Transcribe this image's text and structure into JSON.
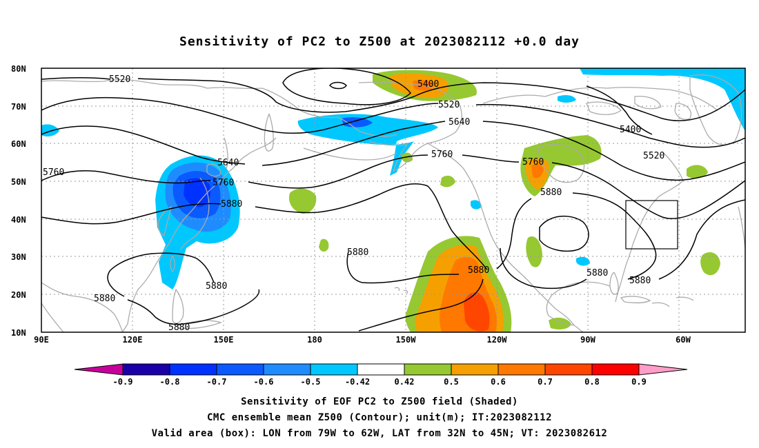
{
  "title": "Sensitivity of PC2 to Z500 at 2023082112 +0.0 day",
  "map": {
    "lon_ticks": [
      "90E",
      "120E",
      "150E",
      "180",
      "150W",
      "120W",
      "90W",
      "60W"
    ],
    "lat_ticks": [
      "80N",
      "70N",
      "60N",
      "50N",
      "40N",
      "30N",
      "20N",
      "10N"
    ],
    "lon_range": [
      90,
      322
    ],
    "lat_range": [
      10,
      80
    ],
    "colors": {
      "land_outline": "#aaaaaa",
      "grid": "#999999",
      "contour": "#000000",
      "box": "#000000"
    }
  },
  "contour_labels": {
    "c1": "5520",
    "c2": "5400",
    "c3": "5520",
    "c4": "5640",
    "c5": "5400",
    "c6": "5520",
    "c7": "5760",
    "c8": "5640",
    "c9": "5760",
    "c10": "5760",
    "c11": "5880",
    "c12": "5880",
    "c13": "5880",
    "c14": "5880",
    "c15": "5880",
    "c16": "5880",
    "c17": "5880",
    "c18": "5880",
    "c19": "5880"
  },
  "shaded_legend": {
    "labels": [
      "-0.9",
      "-0.8",
      "-0.7",
      "-0.6",
      "-0.5",
      "-0.42",
      "0.42",
      "0.5",
      "0.6",
      "0.7",
      "0.8",
      "0.9"
    ],
    "colors": [
      "#1900a8",
      "#0032ff",
      "#0a5aff",
      "#1e8cff",
      "#00c8ff",
      "#ffffff",
      "#96c832",
      "#f5a000",
      "#ff7800",
      "#ff4600",
      "#ff0000"
    ],
    "low_extend_color": "#c8009b",
    "high_extend_color": "#ff9ec8"
  },
  "box": {
    "lon_from": "79W",
    "lon_to": "62W",
    "lat_from": "32N",
    "lat_to": "45N"
  },
  "captions": {
    "line1": "Sensitivity of EOF PC2 to Z500 field (Shaded)",
    "line2": "CMC ensemble mean Z500 (Contour); unit(m); IT:2023082112",
    "line3": "Valid area (box): LON from 79W to 62W, LAT from 32N to 45N; VT: 2023082612"
  }
}
